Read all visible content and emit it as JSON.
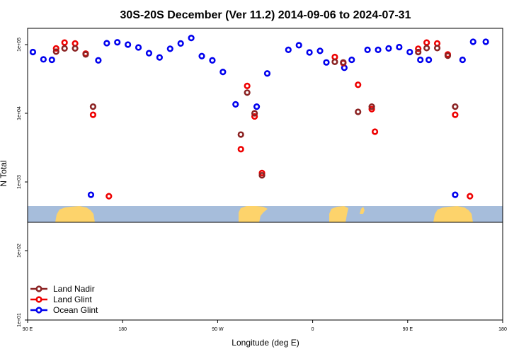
{
  "colors": {
    "land_nadir": "#8b2323",
    "land_glint": "#ee0000",
    "ocean_glint": "#0000ee",
    "ocean": "#a6bddb",
    "land": "#fdd36b"
  },
  "chart_data": {
    "type": "scatter",
    "title": "30S-20S December (Ver 11.2)   2014-09-06 to 2024-07-31",
    "xlabel": "Longitude (deg E)",
    "ylabel": "N Total",
    "x_ticks": [
      {
        "value": 90,
        "label": "90 E"
      },
      {
        "value": 180,
        "label": "180"
      },
      {
        "value": 270,
        "label": "90 W"
      },
      {
        "value": 360,
        "label": "0"
      },
      {
        "value": 450,
        "label": "90 E"
      },
      {
        "value": 540,
        "label": "180"
      }
    ],
    "y_ticks": [
      {
        "value": 10,
        "label": "1e+01"
      },
      {
        "value": 100,
        "label": "1e+02"
      },
      {
        "value": 1000,
        "label": "1e+03"
      },
      {
        "value": 10000,
        "label": "1e+04"
      },
      {
        "value": 100000,
        "label": "1e+05"
      }
    ],
    "legend": [
      "Land Nadir",
      "Land Glint",
      "Ocean Glint"
    ],
    "legend_position": "bottom-left",
    "series": [
      {
        "name": "Ocean Glint",
        "color_key": "ocean_glint",
        "points": [
          [
            95,
            78000
          ],
          [
            105,
            61000
          ],
          [
            113,
            60000
          ],
          [
            150,
            650
          ],
          [
            157,
            59000
          ],
          [
            165,
            105000
          ],
          [
            175,
            108000
          ],
          [
            185,
            100000
          ],
          [
            195,
            91000
          ],
          [
            205,
            75000
          ],
          [
            215,
            65000
          ],
          [
            225,
            87000
          ],
          [
            235,
            104000
          ],
          [
            245,
            125000
          ],
          [
            255,
            68000
          ],
          [
            265,
            59000
          ],
          [
            275,
            40000
          ],
          [
            287,
            13500
          ],
          [
            307,
            12500
          ],
          [
            317,
            38000
          ],
          [
            337,
            84000
          ],
          [
            347,
            98000
          ],
          [
            357,
            77000
          ],
          [
            367,
            81000
          ],
          [
            373,
            55000
          ],
          [
            390,
            46000
          ],
          [
            397,
            60000
          ],
          [
            412,
            84000
          ],
          [
            422,
            84000
          ],
          [
            432,
            88000
          ],
          [
            442,
            92000
          ],
          [
            452,
            78000
          ],
          [
            462,
            60000
          ],
          [
            470,
            60000
          ],
          [
            495,
            650
          ],
          [
            502,
            60000
          ],
          [
            512,
            110000
          ],
          [
            524,
            110000
          ]
        ]
      },
      {
        "name": "Land Glint",
        "color_key": "land_glint",
        "points": [
          [
            117,
            88000
          ],
          [
            125,
            107000
          ],
          [
            135,
            104000
          ],
          [
            145,
            74000
          ],
          [
            152,
            9500
          ],
          [
            167,
            620
          ],
          [
            292,
            3000
          ],
          [
            298,
            25000
          ],
          [
            305,
            9000
          ],
          [
            312,
            1350
          ],
          [
            381,
            66000
          ],
          [
            389,
            54000
          ],
          [
            403,
            26000
          ],
          [
            416,
            11500
          ],
          [
            419,
            5400
          ],
          [
            460,
            87000
          ],
          [
            468,
            107000
          ],
          [
            478,
            104000
          ],
          [
            488,
            72000
          ],
          [
            495,
            9500
          ],
          [
            509,
            620
          ]
        ]
      },
      {
        "name": "Land Nadir",
        "color_key": "land_nadir",
        "points": [
          [
            117,
            79000
          ],
          [
            125,
            88000
          ],
          [
            135,
            88000
          ],
          [
            145,
            72000
          ],
          [
            152,
            12500
          ],
          [
            292,
            4900
          ],
          [
            298,
            20000
          ],
          [
            305,
            10000
          ],
          [
            312,
            1250
          ],
          [
            381,
            56000
          ],
          [
            389,
            55000
          ],
          [
            403,
            10500
          ],
          [
            416,
            12500
          ],
          [
            460,
            78000
          ],
          [
            468,
            89000
          ],
          [
            478,
            89000
          ],
          [
            488,
            69000
          ],
          [
            495,
            12500
          ]
        ]
      }
    ]
  }
}
